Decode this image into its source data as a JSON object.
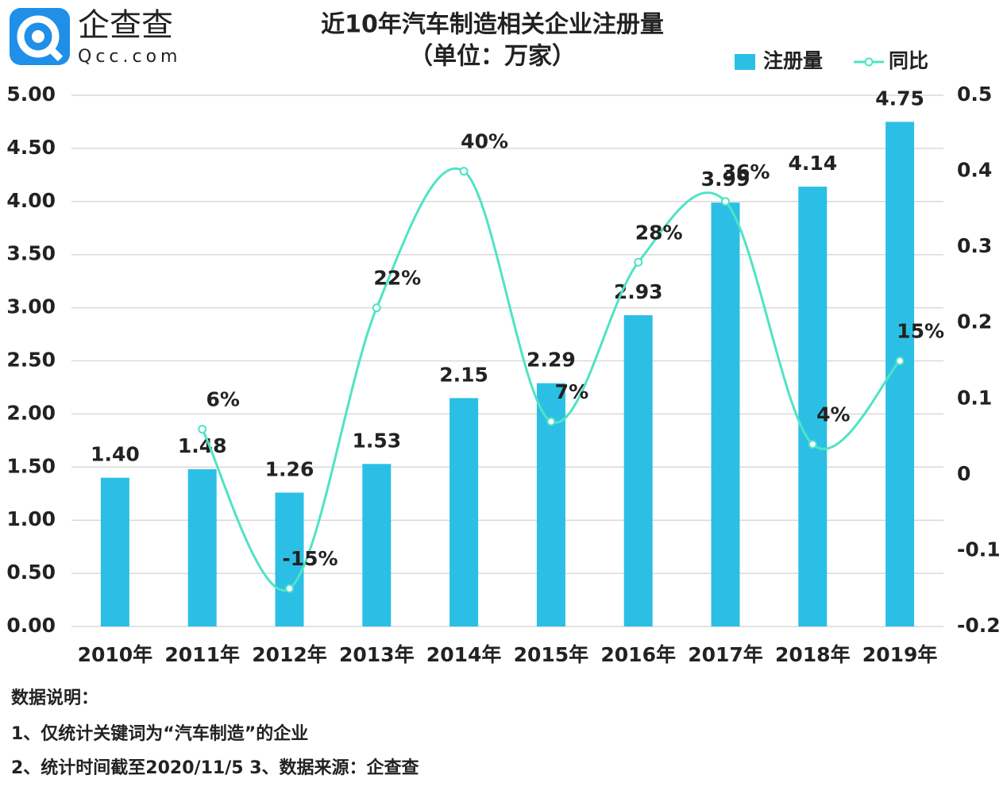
{
  "logo": {
    "name": "企查查",
    "url": "Qcc.com"
  },
  "chart_data": {
    "type": "bar",
    "title": "近10年汽车制造相关企业注册量",
    "subtitle": "（单位：万家）",
    "categories": [
      "2010年",
      "2011年",
      "2012年",
      "2013年",
      "2014年",
      "2015年",
      "2016年",
      "2017年",
      "2018年",
      "2019年"
    ],
    "series": [
      {
        "name": "注册量",
        "type": "bar",
        "color": "#2bbfe6",
        "values": [
          1.4,
          1.48,
          1.26,
          1.53,
          2.15,
          2.29,
          2.93,
          3.99,
          4.14,
          4.75
        ],
        "value_labels": [
          "1.40",
          "1.48",
          "1.26",
          "1.53",
          "2.15",
          "2.29",
          "2.93",
          "3.99",
          "4.14",
          "4.75"
        ]
      },
      {
        "name": "同比",
        "type": "line",
        "axis": "y2",
        "color": "#4fe3c5",
        "values": [
          null,
          0.06,
          -0.15,
          0.22,
          0.4,
          0.07,
          0.28,
          0.36,
          0.04,
          0.15
        ],
        "value_labels": [
          null,
          "6%",
          "-15%",
          "22%",
          "40%",
          "7%",
          "28%",
          "36%",
          "4%",
          "15%"
        ]
      }
    ],
    "ylim": [
      0,
      5
    ],
    "yticks": [
      {
        "value": 0,
        "label": "0.00"
      },
      {
        "value": 0.5,
        "label": "0.50"
      },
      {
        "value": 1,
        "label": "1.00"
      },
      {
        "value": 1.5,
        "label": "1.50"
      },
      {
        "value": 2,
        "label": "2.00"
      },
      {
        "value": 2.5,
        "label": "2.50"
      },
      {
        "value": 3,
        "label": "3.00"
      },
      {
        "value": 3.5,
        "label": "3.50"
      },
      {
        "value": 4,
        "label": "4.00"
      },
      {
        "value": 4.5,
        "label": "4.50"
      },
      {
        "value": 5,
        "label": "5.00"
      }
    ],
    "y2lim": [
      -0.2,
      0.5
    ],
    "y2ticks": [
      -0.2,
      -0.1,
      0,
      0.1,
      0.2,
      0.3,
      0.4,
      0.5
    ],
    "grid": true,
    "legend": "top-right"
  },
  "notes": {
    "heading": "数据说明：",
    "lines": [
      "1、仅统计关键词为“汽车制造”的企业",
      "2、统计时间截至2020/11/5 3、数据来源：企查查"
    ]
  }
}
